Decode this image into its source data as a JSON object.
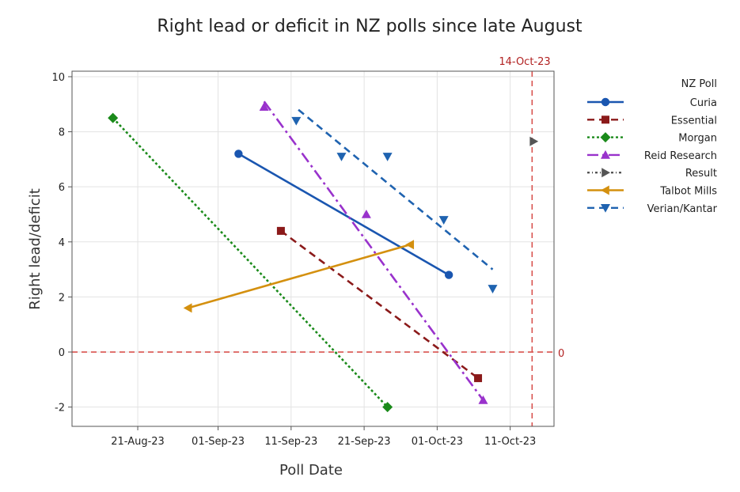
{
  "chart_data": {
    "type": "scatter",
    "title": "Right lead or deficit in NZ polls since late August",
    "xlabel": "Poll Date",
    "ylabel": "Right lead/deficit",
    "x_ticks": [
      {
        "day": 7,
        "label": "21-Aug-23"
      },
      {
        "day": 18,
        "label": "01-Sep-23"
      },
      {
        "day": 28,
        "label": "11-Sep-23"
      },
      {
        "day": 38,
        "label": "21-Sep-23"
      },
      {
        "day": 48,
        "label": "01-Oct-23"
      },
      {
        "day": 58,
        "label": "11-Oct-23"
      }
    ],
    "x_note": "x values are days since 14-Aug-23",
    "xlim": [
      -2,
      64
    ],
    "y_ticks": [
      -2,
      0,
      2,
      4,
      6,
      8,
      10
    ],
    "ylim": [
      -2.7,
      10.2
    ],
    "grid": true,
    "reference_lines": {
      "horizontal": {
        "y": 0,
        "label": "0"
      },
      "vertical": {
        "x": 61,
        "label": "14-Oct-23"
      }
    },
    "legend_title": "NZ Poll",
    "series": [
      {
        "name": "Curia",
        "color": "#1a56b0",
        "marker": "circle",
        "dash": "solid",
        "points": [
          [
            20.8,
            7.2
          ],
          [
            49.6,
            2.8
          ]
        ],
        "fit": [
          [
            20.8,
            7.2
          ],
          [
            49.6,
            2.8
          ]
        ]
      },
      {
        "name": "Essential",
        "color": "#8b1a1a",
        "marker": "square",
        "dash": "dashed",
        "points": [
          [
            26.6,
            4.4
          ],
          [
            53.6,
            -0.95
          ]
        ],
        "fit": [
          [
            26.6,
            4.4
          ],
          [
            53.6,
            -0.95
          ]
        ]
      },
      {
        "name": "Morgan",
        "color": "#1a8a1a",
        "marker": "diamond",
        "dash": "dotted",
        "points": [
          [
            3.6,
            8.5
          ],
          [
            41.2,
            -2.0
          ]
        ],
        "fit": [
          [
            3.6,
            8.5
          ],
          [
            41.2,
            -2.0
          ]
        ]
      },
      {
        "name": "Reid Research",
        "color": "#9932cc",
        "marker": "triangle-up",
        "dash": "dashdot",
        "points": [
          [
            24.3,
            8.9
          ],
          [
            38.3,
            5.0
          ],
          [
            54.3,
            -1.75
          ]
        ],
        "fit": [
          [
            24.3,
            9.1
          ],
          [
            54.3,
            -1.75
          ]
        ]
      },
      {
        "name": "Result",
        "color": "#555555",
        "marker": "triangle-right",
        "dash": "dashdotted",
        "points": [
          [
            61.2,
            7.65
          ]
        ],
        "fit": []
      },
      {
        "name": "Talbot Mills",
        "color": "#d4900f",
        "marker": "triangle-left",
        "dash": "solid",
        "points": [
          [
            13.9,
            1.6
          ],
          [
            44.3,
            3.9
          ]
        ],
        "fit": [
          [
            13.9,
            1.6
          ],
          [
            44.3,
            3.9
          ]
        ]
      },
      {
        "name": "Verian/Kantar",
        "color": "#1f63b0",
        "marker": "triangle-down",
        "dash": "dashed",
        "points": [
          [
            28.7,
            8.4
          ],
          [
            34.9,
            7.1
          ],
          [
            41.2,
            7.1
          ],
          [
            48.9,
            4.8
          ],
          [
            55.6,
            2.3
          ]
        ],
        "fit": [
          [
            29.0,
            8.8
          ],
          [
            55.6,
            3.0
          ]
        ]
      }
    ]
  }
}
